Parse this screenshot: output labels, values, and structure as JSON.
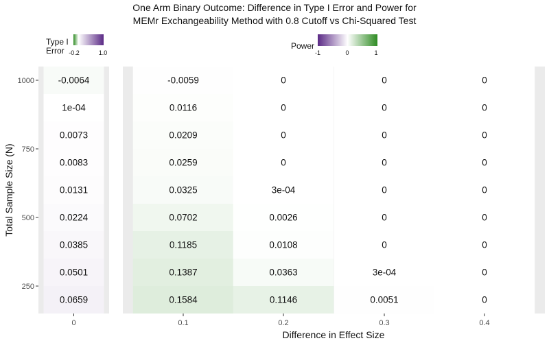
{
  "chart_data": {
    "type": "heatmap",
    "title_line1": "One Arm Binary Outcome: Difference in Type I Error and Power for",
    "title_line2": "MEMr Exchangeability Method with 0.8 Cutoff vs Chi-Squared Test",
    "xlabel": "Difference in Effect Size",
    "ylabel": "Total Sample Size (N)",
    "y_ticks": [
      250,
      500,
      750,
      1000
    ],
    "y_range": [
      150,
      1050
    ],
    "sample_sizes": [
      200,
      300,
      400,
      500,
      600,
      700,
      800,
      900,
      1000
    ],
    "type1_panel": {
      "x_tick": "0",
      "values": [
        0.0659,
        0.0501,
        0.0385,
        0.0224,
        0.0131,
        0.0083,
        0.0073,
        0.0001,
        -0.0064
      ],
      "labels": [
        "0.0659",
        "0.0501",
        "0.0385",
        "0.0224",
        "0.0131",
        "0.0083",
        "0.0073",
        "1e-04",
        "-0.0064"
      ]
    },
    "power_panel": {
      "x_ticks": [
        "0.1",
        "0.2",
        "0.3",
        "0.4"
      ],
      "series": [
        {
          "x": "0.1",
          "values": [
            0.1584,
            0.1387,
            0.1185,
            0.0702,
            0.0325,
            0.0259,
            0.0209,
            0.0116,
            -0.0059
          ],
          "labels": [
            "0.1584",
            "0.1387",
            "0.1185",
            "0.0702",
            "0.0325",
            "0.0259",
            "0.0209",
            "0.0116",
            "-0.0059"
          ]
        },
        {
          "x": "0.2",
          "values": [
            0.1146,
            0.0363,
            0.0108,
            0.0026,
            0.0003,
            0,
            0,
            0,
            0
          ],
          "labels": [
            "0.1146",
            "0.0363",
            "0.0108",
            "0.0026",
            "3e-04",
            "0",
            "0",
            "0",
            "0"
          ]
        },
        {
          "x": "0.3",
          "values": [
            0.0051,
            0.0003,
            0,
            0,
            0,
            0,
            0,
            0,
            0
          ],
          "labels": [
            "0.0051",
            "3e-04",
            "0",
            "0",
            "0",
            "0",
            "0",
            "0",
            "0"
          ]
        },
        {
          "x": "0.4",
          "values": [
            0,
            0,
            0,
            0,
            0,
            0,
            0,
            0,
            0
          ],
          "labels": [
            "0",
            "0",
            "0",
            "0",
            "0",
            "0",
            "0",
            "0",
            "0"
          ]
        }
      ]
    },
    "legend_type1": {
      "title_line1": "Type I",
      "title_line2": "Error",
      "min_label": "-0.2",
      "max_label": "1.0",
      "range": [
        -0.2,
        1.0
      ]
    },
    "legend_power": {
      "title": "Power",
      "tick_labels": [
        "-1",
        "0",
        "1"
      ],
      "range": [
        -1,
        1
      ]
    },
    "colors": {
      "negative": "#5b2a86",
      "zero": "#ffffff",
      "positive": "#2e8b22",
      "panel_bg": "#ebebeb"
    }
  }
}
